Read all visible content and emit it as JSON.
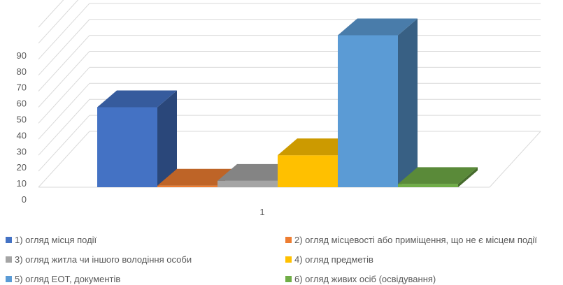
{
  "chart_data": {
    "type": "bar",
    "three_d": true,
    "categories": [
      "1"
    ],
    "ylim": [
      0,
      100
    ],
    "yticks": [
      0,
      10,
      20,
      30,
      40,
      50,
      60,
      70,
      80,
      90,
      100
    ],
    "ytick_labels": [
      "0",
      "10",
      "20",
      "30",
      "40",
      "50",
      "60",
      "70",
      "80",
      "90",
      ""
    ],
    "grid": true,
    "legend_position": "bottom",
    "series": [
      {
        "name": "1) огляд місця події",
        "values": [
          50
        ],
        "color": "#4472C4"
      },
      {
        "name": "2) огляд місцевості або приміщення, що не є місцем події",
        "values": [
          1
        ],
        "color": "#ED7D31"
      },
      {
        "name": "3) огляд житла чи іншого володіння особи",
        "values": [
          4
        ],
        "color": "#A5A5A5"
      },
      {
        "name": "4) огляд предметів",
        "values": [
          20
        ],
        "color": "#FFC000"
      },
      {
        "name": "5) огляд ЕОТ, документів",
        "values": [
          95
        ],
        "color": "#5B9BD5"
      },
      {
        "name": "6) огляд живих осіб (освідування)",
        "values": [
          2
        ],
        "color": "#70AD47"
      }
    ]
  }
}
